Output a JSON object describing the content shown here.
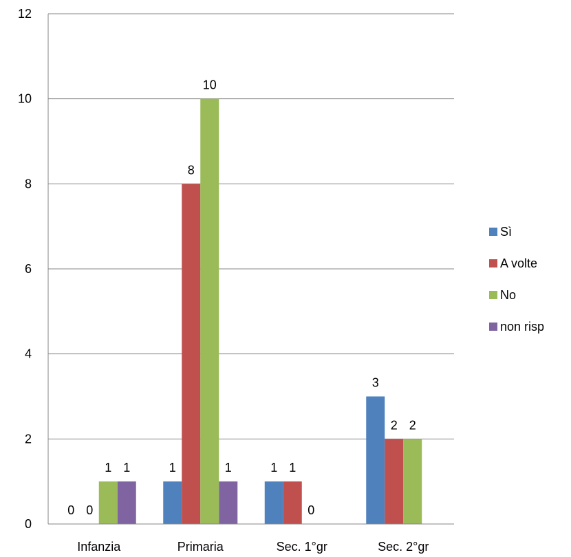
{
  "chart_data": {
    "type": "bar",
    "categories": [
      "Infanzia",
      "Primaria",
      "Sec. 1°gr",
      "Sec. 2°gr"
    ],
    "series": [
      {
        "name": "Sì",
        "color": "#4F81BD",
        "values": [
          0,
          1,
          1,
          3
        ],
        "labels": [
          "0",
          "1",
          "1",
          "3"
        ]
      },
      {
        "name": "A volte",
        "color": "#C0504D",
        "values": [
          0,
          8,
          1,
          2
        ],
        "labels": [
          "0",
          "8",
          "1",
          "2"
        ]
      },
      {
        "name": "No",
        "color": "#9BBB59",
        "values": [
          1,
          10,
          0,
          2
        ],
        "labels": [
          "1",
          "10",
          "0",
          "2"
        ]
      },
      {
        "name": "non risp",
        "color": "#8064A2",
        "values": [
          1,
          1,
          null,
          null
        ],
        "labels": [
          "1",
          "1",
          null,
          null
        ]
      }
    ],
    "yticks": [
      "0",
      "2",
      "4",
      "6",
      "8",
      "10",
      "12"
    ],
    "ylim": [
      0,
      12
    ],
    "grid": true,
    "legend": "right",
    "title": "",
    "xlabel": "",
    "ylabel": ""
  }
}
